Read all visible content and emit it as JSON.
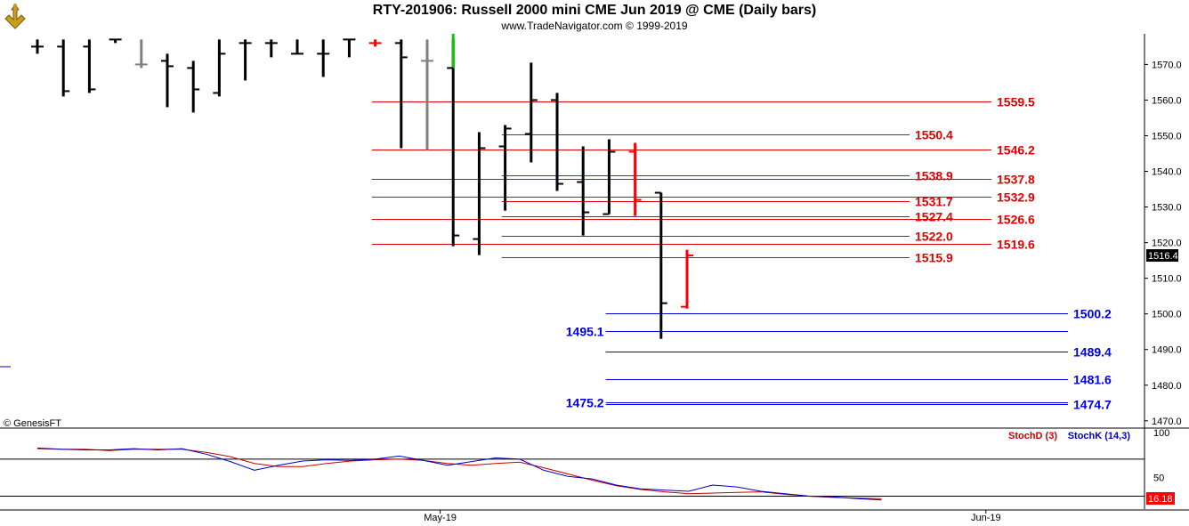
{
  "header": {
    "title": "RTY-201906:  Russell 2000 mini CME Jun 2019 @ CME  (Daily bars)",
    "copyright": "www.TradeNavigator.com © 1999-2019"
  },
  "watermark": "© GenesisFT",
  "colors": {
    "bar": "#000000",
    "up_last": "#00cc00",
    "down_last": "#ff0000",
    "gray_bar": "#808080",
    "red_level": "#e00000",
    "blue_level": "#0000e0",
    "stoch_d": "#cc0000",
    "stoch_k": "#0000cc",
    "current_price_bg": "#000000",
    "stoch_value_bg": "#ff0000"
  },
  "chart_data": [
    {
      "type": "ohlc",
      "title": "RTY-201906:  Russell 2000 mini CME Jun 2019 @ CME  (Daily bars)",
      "ylim": [
        1465,
        1577
      ],
      "y_ticks": [
        "1570.0",
        "1560.0",
        "1550.0",
        "1540.0",
        "1530.0",
        "1520.0",
        "1510.0",
        "1500.0",
        "1490.0",
        "1480.0",
        "1470.0"
      ],
      "x_tick_labels": [
        {
          "label": "May-19",
          "bar": 15.5
        },
        {
          "label": "Jun-19",
          "bar": 36.5
        }
      ],
      "current_price": "1516.4",
      "bars": [
        {
          "h": 1577,
          "l": 1573,
          "o": 1575,
          "c": 1575,
          "color": "black"
        },
        {
          "h": 1577,
          "l": 1561,
          "o": 1575,
          "c": 1562.5,
          "color": "black"
        },
        {
          "h": 1577,
          "l": 1562,
          "o": 1575,
          "c": 1563,
          "color": "black"
        },
        {
          "h": 1577,
          "l": 1576,
          "o": 1577,
          "c": 1577,
          "color": "black"
        },
        {
          "h": 1577,
          "l": 1569,
          "o": 1570,
          "c": 1570,
          "color": "gray"
        },
        {
          "h": 1573,
          "l": 1558,
          "o": 1571,
          "c": 1569.5,
          "color": "black"
        },
        {
          "h": 1571,
          "l": 1556.5,
          "o": 1569,
          "c": 1563,
          "color": "black"
        },
        {
          "h": 1577,
          "l": 1561,
          "o": 1562,
          "c": 1573,
          "color": "black"
        },
        {
          "h": 1577,
          "l": 1565.5,
          "o": 1576,
          "c": 1576,
          "color": "black"
        },
        {
          "h": 1577,
          "l": 1572,
          "o": 1576,
          "c": 1576,
          "color": "black"
        },
        {
          "h": 1577,
          "l": 1573,
          "o": 1573,
          "c": 1573,
          "color": "black"
        },
        {
          "h": 1577,
          "l": 1566.5,
          "o": 1573,
          "c": 1573,
          "color": "black"
        },
        {
          "h": 1577,
          "l": 1572,
          "o": 1577,
          "c": 1577,
          "color": "black"
        },
        {
          "h": 1577,
          "l": 1575,
          "o": 1576,
          "c": 1576,
          "color": "red"
        },
        {
          "h": 1577,
          "l": 1546.5,
          "o": 1576,
          "c": 1572,
          "color": "black"
        },
        {
          "h": 1577,
          "l": 1546,
          "o": 1571,
          "c": 1571,
          "color": "gray"
        },
        {
          "h": 1577,
          "l": 1519,
          "o": 1569,
          "c": 1522,
          "color": "black",
          "top_color": "green"
        },
        {
          "h": 1551,
          "l": 1516.5,
          "o": 1521,
          "c": 1546.5,
          "color": "black"
        },
        {
          "h": 1553,
          "l": 1529,
          "o": 1547,
          "c": 1552,
          "color": "black"
        },
        {
          "h": 1570.5,
          "l": 1542.5,
          "o": 1550.5,
          "c": 1560,
          "color": "black"
        },
        {
          "h": 1562,
          "l": 1534.5,
          "o": 1560,
          "c": 1536.5,
          "color": "black"
        },
        {
          "h": 1547,
          "l": 1522,
          "o": 1537,
          "c": 1528.5,
          "color": "black"
        },
        {
          "h": 1549,
          "l": 1528,
          "o": 1528,
          "c": 1545.5,
          "color": "black"
        },
        {
          "h": 1548,
          "l": 1527.5,
          "o": 1545.5,
          "c": 1532,
          "color": "red"
        },
        {
          "h": 1534,
          "l": 1493,
          "o": 1534,
          "c": 1503,
          "color": "black"
        },
        {
          "h": 1518,
          "l": 1501.5,
          "o": 1502,
          "c": 1516.4,
          "color": "red"
        }
      ],
      "levels": [
        {
          "value": "1559.5",
          "color": "red",
          "from": 14,
          "to": "right"
        },
        {
          "value": "1550.4",
          "color": "red",
          "from": 19,
          "to": "mid"
        },
        {
          "value": "1546.2",
          "color": "red",
          "from": 14,
          "to": "right"
        },
        {
          "value": "1538.9",
          "color": "red",
          "from": 19,
          "to": "mid"
        },
        {
          "value": "1537.8",
          "color": "red",
          "from": 14,
          "to": "right"
        },
        {
          "value": "1532.9",
          "color": "red",
          "from": 14,
          "to": "right"
        },
        {
          "value": "1531.7",
          "color": "red",
          "from": 19,
          "to": "mid"
        },
        {
          "value": "1527.4",
          "color": "red",
          "from": 19,
          "to": "mid"
        },
        {
          "value": "1526.6",
          "color": "red",
          "from": 14,
          "to": "right"
        },
        {
          "value": "1522.0",
          "color": "red",
          "from": 19,
          "to": "mid"
        },
        {
          "value": "1519.6",
          "color": "red",
          "from": 14,
          "to": "right"
        },
        {
          "value": "1515.9",
          "color": "red",
          "from": 19,
          "to": "mid"
        },
        {
          "value": "1500.2",
          "color": "blue",
          "from": 23,
          "to": "right"
        },
        {
          "value": "1495.1",
          "color": "blue",
          "from": 23,
          "to": "right",
          "label_side": "left"
        },
        {
          "value": "1489.4",
          "color": "blue",
          "from": 23,
          "to": "right"
        },
        {
          "value": "1481.6",
          "color": "blue",
          "from": 23,
          "to": "right"
        },
        {
          "value": "1475.2",
          "color": "blue",
          "from": 23,
          "to": "right",
          "label_side": "left"
        },
        {
          "value": "1474.7",
          "color": "blue",
          "from": 23,
          "to": "right"
        }
      ]
    },
    {
      "type": "line",
      "legend": [
        "StochD (3)",
        "StochK (14,3)"
      ],
      "ylim": [
        0,
        100
      ],
      "y_ticks": [
        "100",
        "50"
      ],
      "reference_lines": [
        80,
        20
      ],
      "current_value": "16.18",
      "series": [
        {
          "name": "StochD (3)",
          "color": "stoch_d",
          "points": [
            [
              1,
              97
            ],
            [
              2,
              96
            ],
            [
              3,
              96
            ],
            [
              4,
              94
            ],
            [
              5,
              96
            ],
            [
              6,
              96
            ],
            [
              7,
              96
            ],
            [
              8,
              91
            ],
            [
              9,
              84
            ],
            [
              10,
              73
            ],
            [
              11,
              68
            ],
            [
              12,
              68
            ],
            [
              13,
              73
            ],
            [
              14,
              77
            ],
            [
              15,
              79
            ],
            [
              16,
              80
            ],
            [
              17,
              78
            ],
            [
              18,
              73
            ],
            [
              19,
              70
            ],
            [
              20,
              73
            ],
            [
              21,
              75
            ],
            [
              22,
              66
            ],
            [
              23,
              56
            ],
            [
              24,
              46
            ],
            [
              25,
              37
            ],
            [
              26,
              31
            ],
            [
              27,
              27
            ],
            [
              28,
              24
            ],
            [
              29,
              25
            ],
            [
              30,
              26
            ],
            [
              31,
              27
            ],
            [
              32,
              23
            ],
            [
              33,
              20
            ],
            [
              34,
              18
            ],
            [
              35,
              17
            ],
            [
              36,
              16
            ]
          ]
        },
        {
          "name": "StochK (14,3)",
          "color": "stoch_k",
          "points": [
            [
              1,
              98
            ],
            [
              2,
              96
            ],
            [
              3,
              95
            ],
            [
              4,
              95
            ],
            [
              5,
              97
            ],
            [
              6,
              95
            ],
            [
              7,
              97
            ],
            [
              8,
              88
            ],
            [
              9,
              76
            ],
            [
              10,
              62
            ],
            [
              11,
              70
            ],
            [
              12,
              77
            ],
            [
              13,
              79
            ],
            [
              14,
              78
            ],
            [
              15,
              80
            ],
            [
              16,
              85
            ],
            [
              17,
              78
            ],
            [
              18,
              70
            ],
            [
              19,
              76
            ],
            [
              20,
              82
            ],
            [
              21,
              80
            ],
            [
              22,
              62
            ],
            [
              23,
              52
            ],
            [
              24,
              48
            ],
            [
              25,
              38
            ],
            [
              26,
              32
            ],
            [
              27,
              30
            ],
            [
              28,
              28
            ],
            [
              29,
              38
            ],
            [
              30,
              35
            ],
            [
              31,
              28
            ],
            [
              32,
              24
            ],
            [
              33,
              20
            ],
            [
              34,
              19
            ],
            [
              35,
              16
            ],
            [
              36,
              14
            ]
          ]
        }
      ]
    }
  ]
}
